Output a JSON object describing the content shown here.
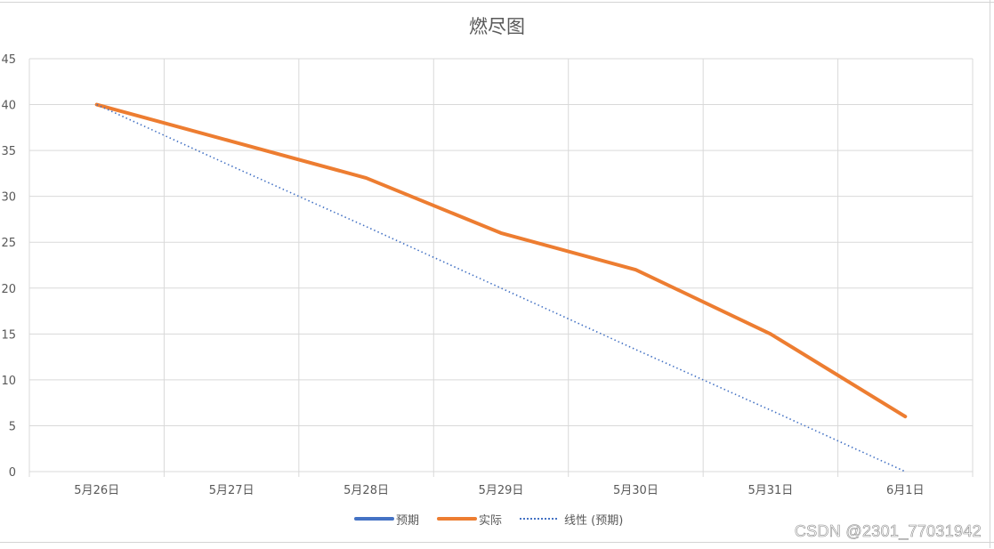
{
  "chart_data": {
    "type": "line",
    "title": "燃尽图",
    "xlabel": "",
    "ylabel": "",
    "categories": [
      "5月26日",
      "5月27日",
      "5月28日",
      "5月29日",
      "5月30日",
      "5月31日",
      "6月1日"
    ],
    "series": [
      {
        "name": "预期",
        "color": "#4472c4",
        "style": "solid",
        "values": [
          40,
          33.3,
          26.7,
          20,
          13.3,
          6.7,
          0
        ]
      },
      {
        "name": "实际",
        "color": "#ed7d31",
        "style": "solid",
        "values": [
          40,
          36,
          32,
          26,
          22,
          15,
          6
        ]
      },
      {
        "name": "线性 (预期)",
        "color": "#4472c4",
        "style": "dotted",
        "trendline_of": "预期",
        "values": [
          40,
          33.3,
          26.7,
          20,
          13.3,
          6.7,
          0
        ]
      }
    ],
    "ylim": [
      0,
      45
    ],
    "yticks": [
      0,
      5,
      10,
      15,
      20,
      25,
      30,
      35,
      40,
      45
    ],
    "grid": true,
    "legend_position": "bottom"
  },
  "watermark": "CSDN @2301_77031942"
}
